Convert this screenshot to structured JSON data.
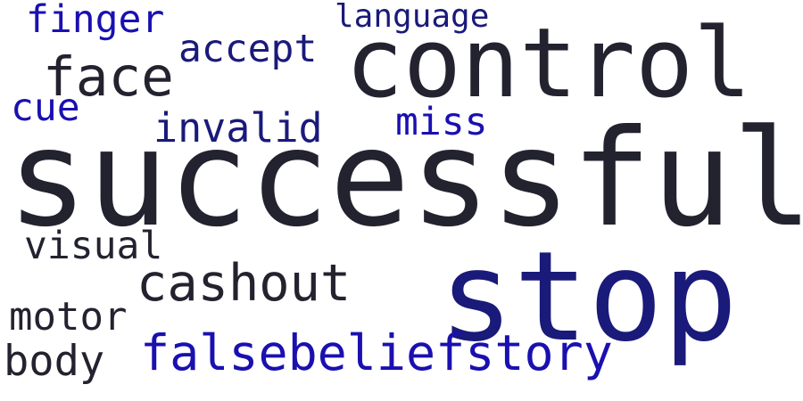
{
  "colors": {
    "background": "#ffffff",
    "dark": "#23222f",
    "navy": "#1a1a7a",
    "blue": "#1a10b0"
  },
  "words": [
    {
      "text": "finger",
      "color": "#1a10b0"
    },
    {
      "text": "language",
      "color": "#1a1a7a"
    },
    {
      "text": "accept",
      "color": "#1a1a7a"
    },
    {
      "text": "control",
      "color": "#23222f"
    },
    {
      "text": "face",
      "color": "#23222f"
    },
    {
      "text": "cue",
      "color": "#1a10b0"
    },
    {
      "text": "invalid",
      "color": "#1a1a7a"
    },
    {
      "text": "miss",
      "color": "#1a10b0"
    },
    {
      "text": "successful",
      "color": "#23222f"
    },
    {
      "text": "visual",
      "color": "#23222f"
    },
    {
      "text": "cashout",
      "color": "#23222f"
    },
    {
      "text": "stop",
      "color": "#1a1a7a"
    },
    {
      "text": "motor",
      "color": "#23222f"
    },
    {
      "text": "falsebeliefstory",
      "color": "#1a10b0"
    },
    {
      "text": "body",
      "color": "#23222f"
    }
  ]
}
